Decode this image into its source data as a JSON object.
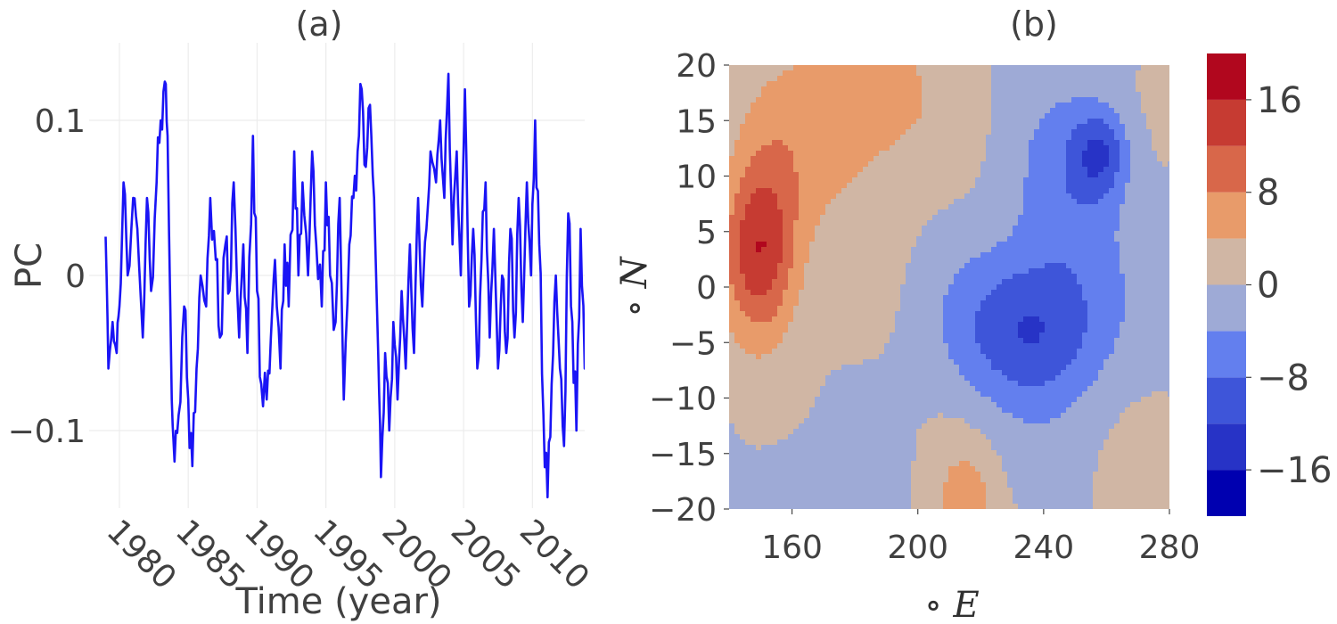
{
  "chart_data": [
    {
      "type": "line",
      "title": "(a)",
      "xlabel": "Time (year)",
      "ylabel": "PC",
      "xlim": [
        1977.8,
        2013.8
      ],
      "ylim": [
        -0.15,
        0.15
      ],
      "grid": true,
      "x_ticks": [
        1980,
        1985,
        1990,
        1995,
        2000,
        2005,
        2010
      ],
      "x_tick_labels": [
        "1980",
        "1985",
        "1990",
        "1995",
        "2000",
        "2005",
        "2010"
      ],
      "y_ticks": [
        -0.1,
        0,
        0.1
      ],
      "y_tick_labels": [
        "−0.1",
        "0",
        "0.1"
      ],
      "line_color": "#1a14f5",
      "anchors": [
        [
          1979.0,
          0.025
        ],
        [
          1979.2,
          -0.06
        ],
        [
          1979.5,
          -0.03
        ],
        [
          1979.8,
          -0.05
        ],
        [
          1980.0,
          -0.02
        ],
        [
          1980.3,
          0.06
        ],
        [
          1980.6,
          0.0
        ],
        [
          1981.0,
          0.05
        ],
        [
          1981.3,
          0.03
        ],
        [
          1981.7,
          -0.04
        ],
        [
          1982.0,
          0.05
        ],
        [
          1982.3,
          -0.01
        ],
        [
          1982.7,
          0.06
        ],
        [
          1983.0,
          0.1
        ],
        [
          1983.3,
          0.125
        ],
        [
          1983.5,
          0.09
        ],
        [
          1983.8,
          -0.08
        ],
        [
          1984.0,
          -0.12
        ],
        [
          1984.3,
          -0.09
        ],
        [
          1984.7,
          -0.02
        ],
        [
          1985.0,
          -0.08
        ],
        [
          1985.3,
          -0.123
        ],
        [
          1985.6,
          -0.06
        ],
        [
          1985.9,
          0.0
        ],
        [
          1986.3,
          -0.02
        ],
        [
          1986.6,
          0.05
        ],
        [
          1987.0,
          0.01
        ],
        [
          1987.3,
          -0.04
        ],
        [
          1987.7,
          0.02
        ],
        [
          1988.0,
          -0.01
        ],
        [
          1988.3,
          0.06
        ],
        [
          1988.7,
          -0.04
        ],
        [
          1989.0,
          0.02
        ],
        [
          1989.3,
          -0.05
        ],
        [
          1989.7,
          0.09
        ],
        [
          1990.0,
          -0.01
        ],
        [
          1990.3,
          -0.07
        ],
        [
          1990.7,
          -0.08
        ],
        [
          1991.0,
          -0.04
        ],
        [
          1991.3,
          0.01
        ],
        [
          1991.7,
          -0.06
        ],
        [
          1992.0,
          0.02
        ],
        [
          1992.3,
          -0.02
        ],
        [
          1992.7,
          0.08
        ],
        [
          1993.0,
          0.0
        ],
        [
          1993.3,
          0.06
        ],
        [
          1993.7,
          0.0
        ],
        [
          1994.0,
          0.08
        ],
        [
          1994.3,
          0.02
        ],
        [
          1994.7,
          -0.02
        ],
        [
          1995.0,
          0.06
        ],
        [
          1995.3,
          0.0
        ],
        [
          1995.7,
          -0.03
        ],
        [
          1996.0,
          0.05
        ],
        [
          1996.3,
          -0.08
        ],
        [
          1996.7,
          0.02
        ],
        [
          1997.0,
          0.05
        ],
        [
          1997.3,
          0.08
        ],
        [
          1997.6,
          0.12
        ],
        [
          1997.9,
          0.07
        ],
        [
          1998.2,
          0.11
        ],
        [
          1998.5,
          0.05
        ],
        [
          1998.8,
          -0.05
        ],
        [
          1999.0,
          -0.13
        ],
        [
          1999.3,
          -0.05
        ],
        [
          1999.6,
          -0.1
        ],
        [
          1999.9,
          -0.03
        ],
        [
          2000.2,
          -0.08
        ],
        [
          2000.5,
          -0.01
        ],
        [
          2000.8,
          -0.06
        ],
        [
          2001.1,
          0.02
        ],
        [
          2001.4,
          -0.05
        ],
        [
          2001.7,
          0.05
        ],
        [
          2002.0,
          -0.02
        ],
        [
          2002.3,
          0.03
        ],
        [
          2002.6,
          0.08
        ],
        [
          2003.0,
          0.06
        ],
        [
          2003.3,
          0.1
        ],
        [
          2003.6,
          0.05
        ],
        [
          2003.9,
          0.13
        ],
        [
          2004.2,
          0.02
        ],
        [
          2004.5,
          0.08
        ],
        [
          2004.8,
          0.0
        ],
        [
          2005.1,
          0.12
        ],
        [
          2005.4,
          -0.02
        ],
        [
          2005.7,
          0.03
        ],
        [
          2006.0,
          -0.06
        ],
        [
          2006.3,
          0.01
        ],
        [
          2006.6,
          0.06
        ],
        [
          2006.9,
          -0.04
        ],
        [
          2007.2,
          0.03
        ],
        [
          2007.5,
          -0.06
        ],
        [
          2007.8,
          0.0
        ],
        [
          2008.1,
          -0.05
        ],
        [
          2008.4,
          0.03
        ],
        [
          2008.7,
          -0.04
        ],
        [
          2009.0,
          0.05
        ],
        [
          2009.3,
          -0.03
        ],
        [
          2009.6,
          0.06
        ],
        [
          2009.9,
          0.0
        ],
        [
          2010.2,
          0.1
        ],
        [
          2010.5,
          0.02
        ],
        [
          2010.8,
          -0.09
        ],
        [
          2011.1,
          -0.143
        ],
        [
          2011.4,
          -0.07
        ],
        [
          2011.7,
          0.0
        ],
        [
          2012.0,
          -0.06
        ],
        [
          2012.3,
          -0.11
        ],
        [
          2012.6,
          0.04
        ],
        [
          2012.9,
          -0.03
        ],
        [
          2013.2,
          -0.1
        ],
        [
          2013.5,
          0.03
        ],
        [
          2013.8,
          -0.06
        ],
        [
          2014.1,
          -0.02
        ],
        [
          2014.3,
          -0.055
        ]
      ]
    },
    {
      "type": "contour",
      "title": "(b)",
      "xlabel": "∘ E",
      "ylabel": "∘ N",
      "xlim": [
        140,
        280
      ],
      "ylim": [
        -20,
        20
      ],
      "x_ticks": [
        160,
        200,
        240,
        280
      ],
      "x_tick_labels": [
        "160",
        "200",
        "240",
        "280"
      ],
      "y_ticks": [
        20,
        15,
        10,
        5,
        0,
        -5,
        -10,
        -15,
        -20
      ],
      "y_tick_labels": [
        "20",
        "15",
        "10",
        "5",
        "0",
        "−5",
        "−10",
        "−15",
        "−20"
      ],
      "levels": [
        -20,
        -16,
        -12,
        -8,
        -4,
        0,
        4,
        8,
        12,
        16,
        20
      ],
      "level_colors": [
        "#0000b0",
        "#2733c6",
        "#3e55d9",
        "#637fee",
        "#9eaad6",
        "#d0b6a4",
        "#e89b6a",
        "#d8674a",
        "#c63b32",
        "#b1071e"
      ],
      "colorbar_tick_values": [
        16,
        8,
        0,
        -8,
        -16
      ],
      "colorbar_tick_labels": [
        "16",
        "8",
        "0",
        "−8",
        "−16"
      ],
      "features": [
        {
          "lon": 150,
          "lat": 3,
          "amp": 16,
          "sx": 12,
          "sy": 8
        },
        {
          "lon": 170,
          "lat": 14,
          "amp": 6,
          "sx": 25,
          "sy": 9
        },
        {
          "lon": 190,
          "lat": 18,
          "amp": 4,
          "sx": 18,
          "sy": 6
        },
        {
          "lon": 235,
          "lat": -4,
          "amp": -12,
          "sx": 24,
          "sy": 7
        },
        {
          "lon": 258,
          "lat": 12,
          "amp": -10,
          "sx": 9,
          "sy": 4
        },
        {
          "lon": 248,
          "lat": 8,
          "amp": -6,
          "sx": 18,
          "sy": 10
        },
        {
          "lon": 215,
          "lat": -20,
          "amp": 7,
          "sx": 9,
          "sy": 5
        },
        {
          "lon": 165,
          "lat": -18,
          "amp": -3,
          "sx": 20,
          "sy": 5
        }
      ]
    }
  ]
}
